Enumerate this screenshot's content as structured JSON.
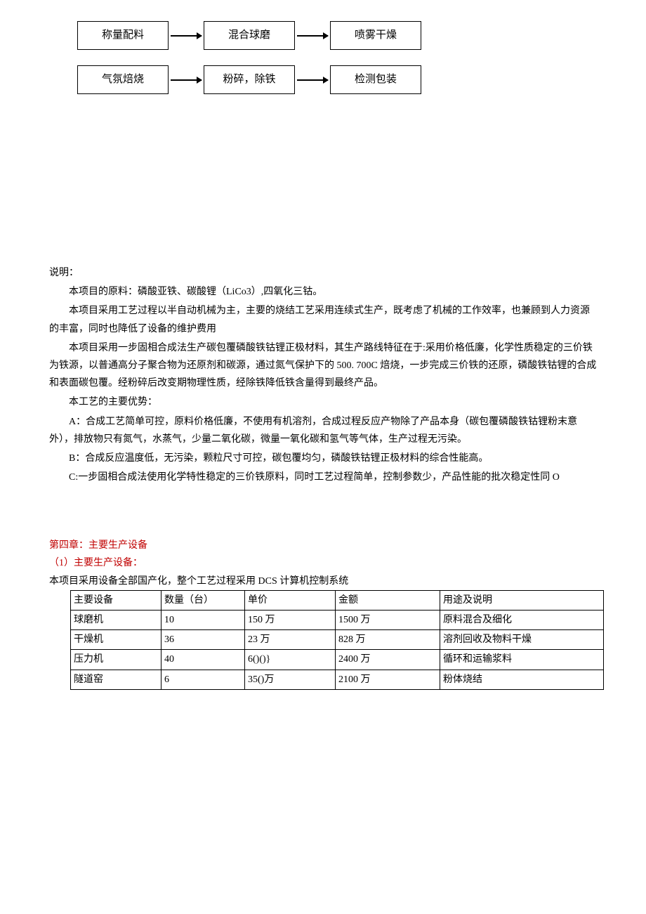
{
  "flowchart": {
    "type": "flowchart",
    "box_border_color": "#000000",
    "box_bg_color": "#ffffff",
    "arrow_color": "#000000",
    "font_size": 15,
    "row1": [
      "称量配料",
      "混合球磨",
      "喷雾干燥"
    ],
    "row2": [
      "气氛焙烧",
      "粉碎，除铁",
      "检测包装"
    ]
  },
  "text": {
    "shuoming": "说明：",
    "p1": "本项目的原料：磷酸亚铁、碳酸锂（LiCo3）,四氧化三钴。",
    "p2": "本项目采用工艺过程以半自动机械为主，主要的烧结工艺采用连续式生产，既考虑了机械的工作效率，也兼顾到人力资源的丰富，同时也降低了设备的维护费用",
    "p3": "本项目采用一步固相合成法生产碳包覆磷酸铁钴锂正极材料，其生产路线特征在于:采用价格低廉，化学性质稳定的三价铁为铁源，以普通高分子聚合物为还原剂和碳源，通过氮气保护下的 500. 700C 焙烧，一步完成三价铁的还原，磷酸铁钴锂的合成和表面碳包覆。经粉碎后改变期物理性质，经除铁降低铁含量得到最终产品。",
    "p4": "本工艺的主要优势：",
    "pA": "A：合成工艺简单可控，原料价格低廉，不使用有机溶剂，合成过程反应产物除了产品本身（碳包覆磷酸铁钴锂粉末意外），排放物只有氮气，水蒸气，少量二氧化碳，微量一氧化碳和氢气等气体，生产过程无污染。",
    "pB": "B：合成反应温度低，无污染，颗粒尺寸可控，碳包覆均匀，磷酸铁钴锂正极材料的综合性能高。",
    "pC": "C:一步固相合成法使用化学特性稳定的三价铁原料，同时工艺过程简单，控制参数少，产品性能的批次稳定性同 O"
  },
  "chapter4": {
    "title": "第四章：主要生产设备",
    "sub": "（1）主要生产设备：",
    "intro": "本项目采用设备全部国产化，整个工艺过程采用 DCS 计算机控制系统",
    "title_color": "#c00000"
  },
  "equipment_table": {
    "type": "table",
    "border_color": "#000000",
    "columns": [
      "主要设备",
      "数量（台）",
      "单价",
      "金额",
      "用途及说明"
    ],
    "rows": [
      [
        "球磨机",
        "10",
        "150 万",
        "1500 万",
        "原料混合及细化"
      ],
      [
        "干燥机",
        "36",
        "23 万",
        "828 万",
        "溶剂回收及物料干燥"
      ],
      [
        "压力机",
        "40",
        "6()()}",
        "2400 万",
        "循环和运输浆料"
      ],
      [
        "隧道窑",
        "6",
        "35()万",
        "2100 万",
        "粉体烧结"
      ]
    ]
  }
}
